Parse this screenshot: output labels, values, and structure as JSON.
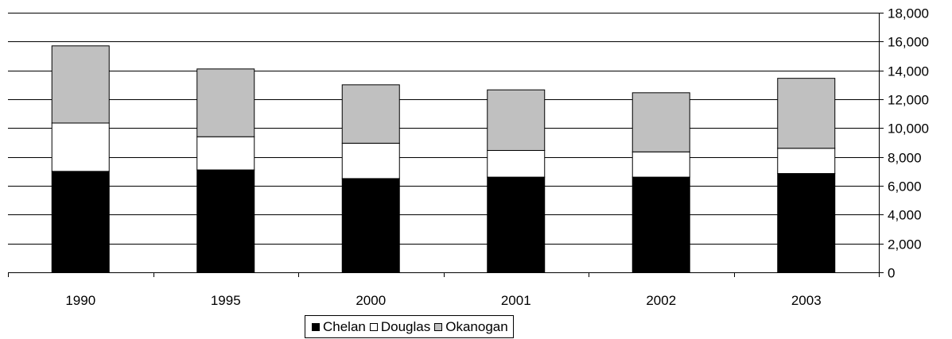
{
  "chart_data": {
    "type": "bar",
    "stacked": true,
    "categories": [
      "1990",
      "1995",
      "2000",
      "2001",
      "2002",
      "2003"
    ],
    "series": [
      {
        "name": "Chelan",
        "color": "#000000",
        "values": [
          7000,
          7100,
          6500,
          6600,
          6600,
          6850
        ]
      },
      {
        "name": "Douglas",
        "color": "#ffffff",
        "values": [
          3350,
          2300,
          2450,
          1850,
          1750,
          1750
        ]
      },
      {
        "name": "Okanogan",
        "color": "#c0c0c0",
        "values": [
          5350,
          4700,
          4050,
          4200,
          4100,
          4850
        ]
      }
    ],
    "title": "",
    "xlabel": "",
    "ylabel": "",
    "ylim": [
      0,
      18000
    ],
    "y_ticks": [
      "0",
      "2,000",
      "4,000",
      "6,000",
      "8,000",
      "10,000",
      "12,000",
      "14,000",
      "16,000",
      "18,000"
    ],
    "y_axis_side": "right",
    "grid": true,
    "legend_position": "bottom"
  }
}
